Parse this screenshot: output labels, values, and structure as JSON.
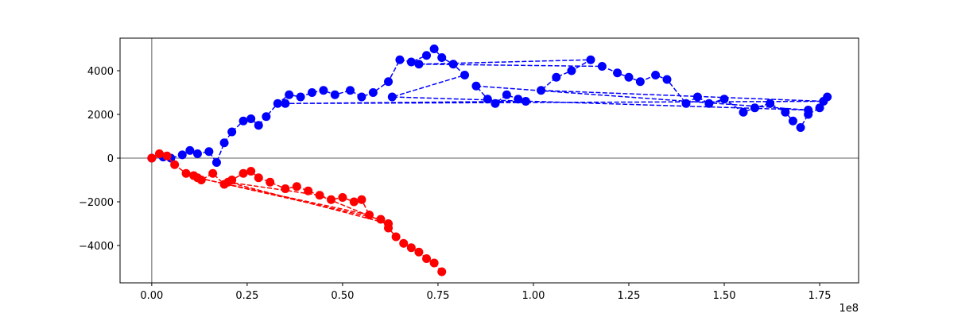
{
  "chart_data": {
    "type": "line",
    "x_offset_label": "1e8",
    "zero_lines": true,
    "marker": "circle",
    "line_style": "dashed",
    "xlim": [
      -8300000,
      185200000
    ],
    "ylim": [
      -5709,
      5491
    ],
    "xticks": [
      {
        "value": 0,
        "label": "0.00"
      },
      {
        "value": 25000000,
        "label": "0.25"
      },
      {
        "value": 50000000,
        "label": "0.50"
      },
      {
        "value": 75000000,
        "label": "0.75"
      },
      {
        "value": 100000000,
        "label": "1.00"
      },
      {
        "value": 125000000,
        "label": "1.25"
      },
      {
        "value": 150000000,
        "label": "1.50"
      },
      {
        "value": 175000000,
        "label": "1.75"
      }
    ],
    "yticks": [
      {
        "value": -4000,
        "label": "−4000"
      },
      {
        "value": -2000,
        "label": "−2000"
      },
      0,
      2000,
      4000
    ],
    "series": [
      {
        "color": "#0000ff",
        "x": [
          0,
          3000000,
          5000000,
          8000000,
          10000000,
          12000000,
          15000000,
          17000000,
          19000000,
          21000000,
          24000000,
          26000000,
          28000000,
          30000000,
          33000000,
          36000000,
          39000000,
          42000000,
          45000000,
          48000000,
          52000000,
          55000000,
          58000000,
          62000000,
          65000000,
          68000000,
          72000000,
          74000000,
          76000000,
          79000000,
          82000000,
          63000000,
          172000000,
          85000000,
          88000000,
          90000000,
          93000000,
          96000000,
          98000000,
          35000000,
          176000000,
          102000000,
          106000000,
          110000000,
          115000000,
          70000000,
          118000000,
          122000000,
          125000000,
          128000000,
          132000000,
          135000000,
          140000000,
          143000000,
          146000000,
          150000000,
          155000000,
          158000000,
          162000000,
          166000000,
          168000000,
          170000000,
          172000000,
          175000000,
          177000000
        ],
        "values": [
          0,
          50,
          0,
          150,
          350,
          200,
          300,
          -200,
          700,
          1200,
          1700,
          1800,
          1500,
          1900,
          2500,
          2900,
          2800,
          3000,
          3100,
          2900,
          3100,
          2800,
          3000,
          3500,
          4500,
          4400,
          4700,
          5000,
          4600,
          4300,
          3800,
          2800,
          2200,
          3300,
          2700,
          2500,
          2900,
          2700,
          2600,
          2500,
          2600,
          3100,
          3700,
          4000,
          4500,
          4300,
          4200,
          3900,
          3700,
          3500,
          3800,
          3600,
          2500,
          2800,
          2500,
          2700,
          2100,
          2300,
          2500,
          2100,
          1700,
          1400,
          2000,
          2300,
          2800
        ]
      },
      {
        "color": "#ff0000",
        "x": [
          0,
          2000000,
          4000000,
          6000000,
          9000000,
          11000000,
          13000000,
          16000000,
          19000000,
          21000000,
          24000000,
          26000000,
          28000000,
          31000000,
          35000000,
          38000000,
          41000000,
          62000000,
          20000000,
          44000000,
          47000000,
          50000000,
          53000000,
          55000000,
          57000000,
          12000000,
          60000000,
          62000000,
          64000000,
          66000000,
          68000000,
          70000000,
          72000000,
          74000000,
          76000000
        ],
        "values": [
          0,
          200,
          100,
          -300,
          -700,
          -800,
          -1000,
          -700,
          -1200,
          -1000,
          -700,
          -600,
          -900,
          -1100,
          -1400,
          -1300,
          -1500,
          -3000,
          -1100,
          -1700,
          -1900,
          -1800,
          -2000,
          -1900,
          -2600,
          -900,
          -2800,
          -3200,
          -3600,
          -3900,
          -4100,
          -4300,
          -4600,
          -4800,
          -5200
        ]
      }
    ]
  }
}
